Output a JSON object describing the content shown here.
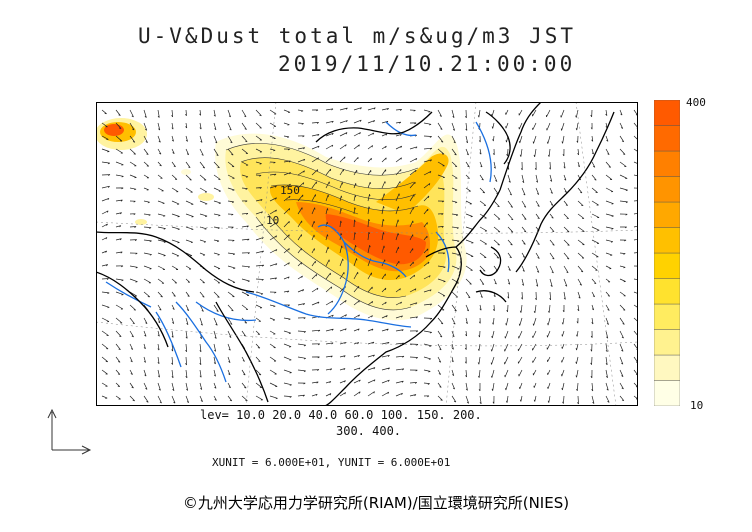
{
  "title": {
    "line1": "U-V&Dust total m/s&ug/m3 JST",
    "line2": "2019/11/10.21:00:00"
  },
  "colorbar": {
    "max_label": "400",
    "min_label": "10",
    "colors": [
      "#ffffe6",
      "#fff8c0",
      "#fff28f",
      "#ffec60",
      "#ffe22e",
      "#ffd200",
      "#ffc000",
      "#ffa800",
      "#ff9400",
      "#ff8000",
      "#ff6a00",
      "#ff5a00"
    ]
  },
  "levels": {
    "line1": "lev= 10.0 20.0 40.0 60.0 100. 150. 200.",
    "line2": "300. 400."
  },
  "units": "XUNIT = 6.000E+01, YUNIT = 6.000E+01",
  "contour_labels": [
    "150",
    "10"
  ],
  "credit": "©九州大学応用力学研究所(RIAM)/国立環境研究所(NIES)",
  "colors": {
    "coast": "#000000",
    "river": "#1a6fe0",
    "dust_low": "#fffbd0",
    "dust_high": "#ff5a00"
  }
}
